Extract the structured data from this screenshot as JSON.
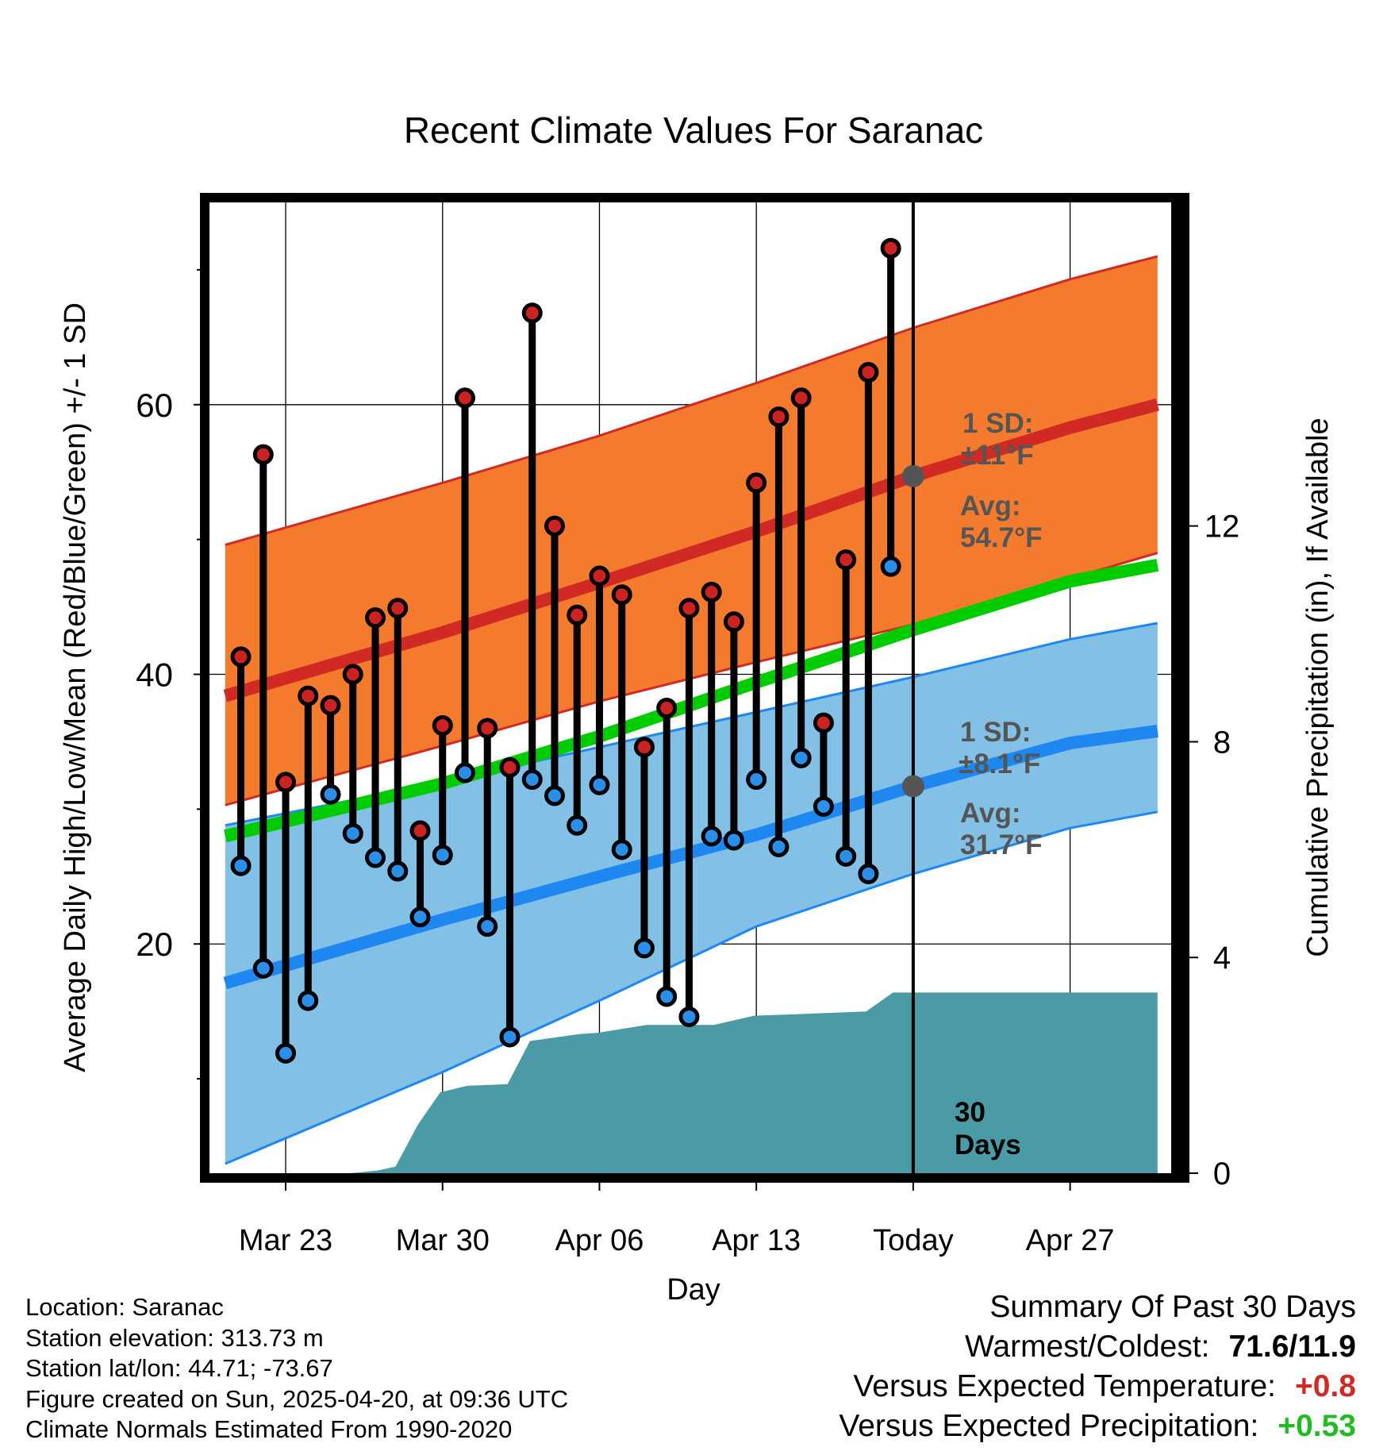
{
  "chart_data": {
    "type": "line",
    "title": "Recent Climate Values For Saranac",
    "xlabel": "Day",
    "ylabel": "Average Daily High/Low/Mean (Red/Blue/Green) +/- 1 SD",
    "y2label": "Cumulative Precipitation (in), If Available",
    "ylim": [
      3,
      75
    ],
    "y2lim": [
      0,
      18
    ],
    "xlim": [
      -3.4,
      39.9
    ],
    "x_ticks": [
      {
        "x": 0,
        "label": "Mar 23"
      },
      {
        "x": 7,
        "label": "Mar 30"
      },
      {
        "x": 14,
        "label": "Apr 06"
      },
      {
        "x": 21,
        "label": "Apr 13"
      },
      {
        "x": 28,
        "label": "Today"
      },
      {
        "x": 35,
        "label": "Apr 27"
      }
    ],
    "y_ticks": [
      20,
      40,
      60
    ],
    "y_minor_ticks": [
      10,
      30,
      50,
      70
    ],
    "y2_ticks": [
      0,
      4,
      8,
      12
    ],
    "grid": true,
    "today_x": 28,
    "days": [
      {
        "date": "Mar 21",
        "high": 41.3,
        "low": 25.8
      },
      {
        "date": "Mar 22",
        "high": 56.3,
        "low": 18.2
      },
      {
        "date": "Mar 23",
        "high": 32.0,
        "low": 11.9
      },
      {
        "date": "Mar 24",
        "high": 38.4,
        "low": 15.8
      },
      {
        "date": "Mar 25",
        "high": 37.7,
        "low": 31.1
      },
      {
        "date": "Mar 26",
        "high": 40.0,
        "low": 28.2
      },
      {
        "date": "Mar 27",
        "high": 44.2,
        "low": 26.4
      },
      {
        "date": "Mar 28",
        "high": 44.9,
        "low": 25.4
      },
      {
        "date": "Mar 29",
        "high": 28.4,
        "low": 22.0
      },
      {
        "date": "Mar 30",
        "high": 36.2,
        "low": 26.6
      },
      {
        "date": "Mar 31",
        "high": 60.5,
        "low": 32.7
      },
      {
        "date": "Apr 01",
        "high": 36.0,
        "low": 21.3
      },
      {
        "date": "Apr 02",
        "high": 33.1,
        "low": 13.1
      },
      {
        "date": "Apr 03",
        "high": 66.8,
        "low": 32.2
      },
      {
        "date": "Apr 04",
        "high": 51.0,
        "low": 31.0
      },
      {
        "date": "Apr 05",
        "high": 44.4,
        "low": 28.8
      },
      {
        "date": "Apr 06",
        "high": 47.3,
        "low": 31.8
      },
      {
        "date": "Apr 07",
        "high": 45.9,
        "low": 27.0
      },
      {
        "date": "Apr 08",
        "high": 34.6,
        "low": 19.7
      },
      {
        "date": "Apr 09",
        "high": 37.5,
        "low": 16.1
      },
      {
        "date": "Apr 10",
        "high": 44.9,
        "low": 14.6
      },
      {
        "date": "Apr 11",
        "high": 46.1,
        "low": 28.0
      },
      {
        "date": "Apr 12",
        "high": 43.9,
        "low": 27.7
      },
      {
        "date": "Apr 13",
        "high": 54.2,
        "low": 32.2
      },
      {
        "date": "Apr 14",
        "high": 59.1,
        "low": 27.2
      },
      {
        "date": "Apr 15",
        "high": 60.5,
        "low": 33.8
      },
      {
        "date": "Apr 16",
        "high": 36.4,
        "low": 30.2
      },
      {
        "date": "Apr 17",
        "high": 48.5,
        "low": 26.5
      },
      {
        "date": "Apr 18",
        "high": 62.4,
        "low": 25.2
      },
      {
        "date": "Apr 19",
        "high": 71.6,
        "low": 48.0
      }
    ],
    "normals": {
      "x": [
        -2.7,
        7,
        14,
        21,
        28,
        35,
        38.9
      ],
      "high_avg": [
        38.4,
        43.1,
        46.8,
        50.6,
        54.7,
        58.3,
        60.0
      ],
      "high_sd_upper": [
        49.6,
        54.2,
        57.7,
        61.6,
        65.7,
        69.3,
        71.0
      ],
      "high_sd_lower": [
        30.3,
        34.7,
        38.0,
        40.9,
        43.7,
        47.1,
        49.0
      ],
      "mean_avg": [
        28.0,
        31.9,
        35.4,
        39.4,
        43.3,
        46.9,
        48.1
      ],
      "low_avg": [
        17.1,
        21.8,
        25.0,
        28.1,
        31.7,
        34.9,
        35.8
      ],
      "low_sd_upper": [
        28.8,
        32.0,
        34.6,
        37.2,
        39.8,
        42.6,
        43.8
      ],
      "low_sd_lower": [
        3.7,
        10.5,
        15.8,
        21.3,
        25.2,
        28.6,
        29.8
      ]
    },
    "precip_cumulative": {
      "x": [
        -2.7,
        2.9,
        4.1,
        4.9,
        5.9,
        6.9,
        8.1,
        9.9,
        10.9,
        13.1,
        13.9,
        16.1,
        19.1,
        20.9,
        22.9,
        25.9,
        27.1,
        38.9
      ],
      "values": [
        0,
        0,
        0.05,
        0.12,
        0.9,
        1.5,
        1.62,
        1.65,
        2.45,
        2.58,
        2.6,
        2.75,
        2.75,
        2.92,
        2.95,
        3.0,
        3.35,
        3.35
      ]
    },
    "annotations": {
      "high_sd_label": "1 SD:",
      "high_sd_value": "±11°F",
      "high_avg_label": "Avg:",
      "high_avg_value": "54.7°F",
      "high_avg": 54.7,
      "low_sd_label": "1 SD:",
      "low_sd_value": "±8.1°F",
      "low_avg_label": "Avg:",
      "low_avg_value": "31.7°F",
      "low_avg": 31.7,
      "window_number": "30",
      "window_unit": "Days"
    },
    "colors": {
      "high_band": "#f47b2e",
      "high_line": "#d12a24",
      "low_band": "#82c0e6",
      "low_line": "#1e88f0",
      "mean_line": "#00cc00",
      "precip": "#4a9ba6",
      "high_marker": "#cc2222",
      "low_marker": "#2b8ee8",
      "annotation": "#555555"
    }
  },
  "info": {
    "location": "Location: Saranac",
    "elevation": "Station elevation: 313.73 m",
    "latlon": "Station lat/lon: 44.71; -73.67",
    "created": "Figure created on Sun, 2025-04-20, at 09:36 UTC",
    "normals": "Climate Normals Estimated From 1990-2020"
  },
  "summary": {
    "heading": "Summary Of Past 30 Days",
    "warm_cold_label": "Warmest/Coldest:",
    "warm_cold_value": "71.6/11.9",
    "temp_label": "Versus Expected Temperature:",
    "temp_value": "+0.8",
    "temp_color": "#d12a24",
    "precip_label": "Versus Expected Precipitation:",
    "precip_value": "+0.53",
    "precip_color": "#22bb22"
  }
}
